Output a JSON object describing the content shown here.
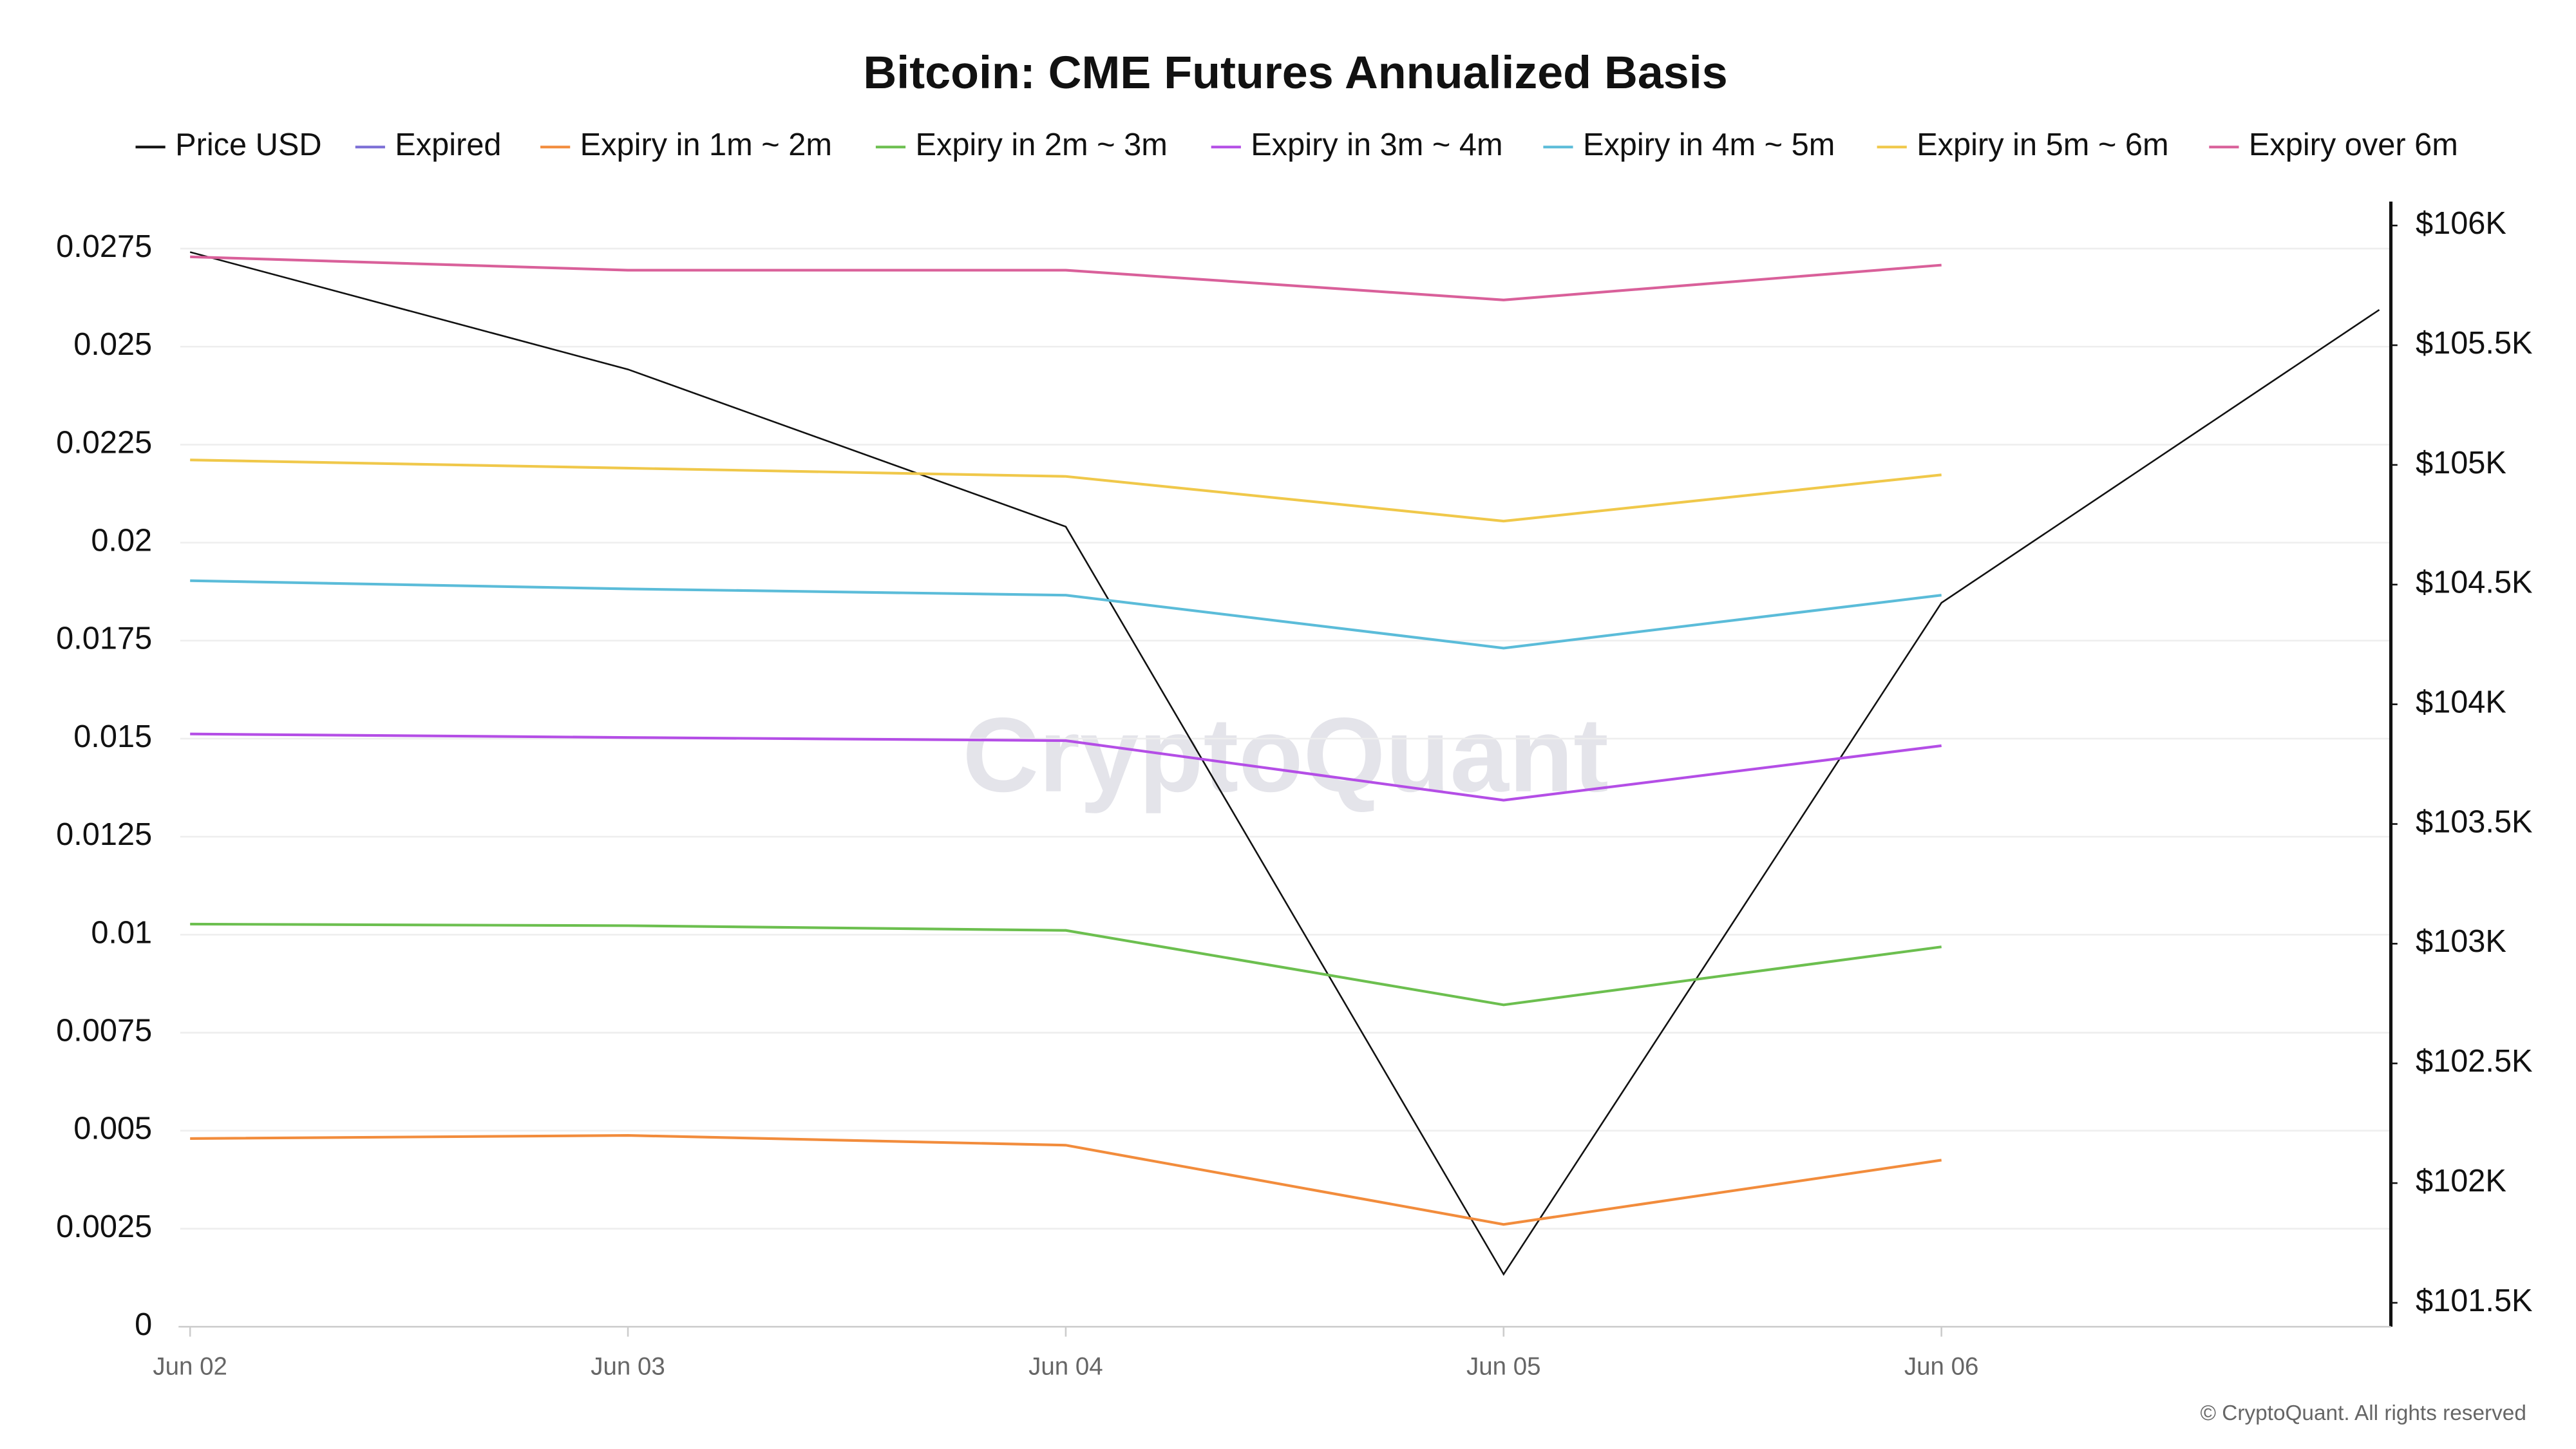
{
  "chart_data": {
    "type": "line",
    "title": "Bitcoin: CME Futures Annualized Basis",
    "watermark": "CryptoQuant",
    "footer": "© CryptoQuant. All rights reserved",
    "categories": [
      "Jun 02",
      "Jun 03",
      "Jun 04",
      "Jun 05",
      "Jun 06",
      null
    ],
    "ylim": [
      0,
      0.0287
    ],
    "yticks": [
      0,
      0.0025,
      0.005,
      0.0075,
      0.01,
      0.0125,
      0.015,
      0.0175,
      0.02,
      0.0225,
      0.025,
      0.0275
    ],
    "y2lim": [
      101400,
      106100
    ],
    "y2ticks": [
      {
        "value": 101500,
        "label": "$101.5K"
      },
      {
        "value": 102000,
        "label": "$102K"
      },
      {
        "value": 102500,
        "label": "$102.5K"
      },
      {
        "value": 103000,
        "label": "$103K"
      },
      {
        "value": 103500,
        "label": "$103.5K"
      },
      {
        "value": 104000,
        "label": "$104K"
      },
      {
        "value": 104500,
        "label": "$104.5K"
      },
      {
        "value": 105000,
        "label": "$105K"
      },
      {
        "value": 105500,
        "label": "$105.5K"
      },
      {
        "value": 106000,
        "label": "$106K"
      }
    ],
    "grid": true,
    "legend": "top",
    "series": [
      {
        "name": "Price USD",
        "color": "#111111",
        "axis": "y2",
        "values": [
          105889,
          105399,
          104742,
          101619,
          104424,
          105648
        ]
      },
      {
        "name": "Expired",
        "color": "#7b6fd6",
        "values": [
          null,
          null,
          null,
          null,
          null,
          null
        ]
      },
      {
        "name": "Expiry in 1m ~ 2m",
        "color": "#f28c3c",
        "values": [
          0.0048,
          0.00488,
          0.00463,
          0.00261,
          0.00425,
          null
        ]
      },
      {
        "name": "Expiry in 2m ~ 3m",
        "color": "#6cbf4f",
        "values": [
          0.01027,
          0.01023,
          0.01011,
          0.00821,
          0.00969,
          null
        ]
      },
      {
        "name": "Expiry in 3m ~ 4m",
        "color": "#b44ee6",
        "values": [
          0.01512,
          0.01503,
          0.01495,
          0.01343,
          0.01482,
          null
        ]
      },
      {
        "name": "Expiry in 4m ~ 5m",
        "color": "#5bbcd9",
        "values": [
          0.01903,
          0.01882,
          0.01866,
          0.01731,
          0.01866,
          null
        ]
      },
      {
        "name": "Expiry in 5m ~ 6m",
        "color": "#f0c84a",
        "values": [
          0.02211,
          0.0219,
          0.02169,
          0.02055,
          0.02173,
          null
        ]
      },
      {
        "name": "Expiry over 6m",
        "color": "#d9609a",
        "values": [
          0.02729,
          0.02695,
          0.02695,
          0.02619,
          0.02708,
          null
        ]
      }
    ]
  }
}
